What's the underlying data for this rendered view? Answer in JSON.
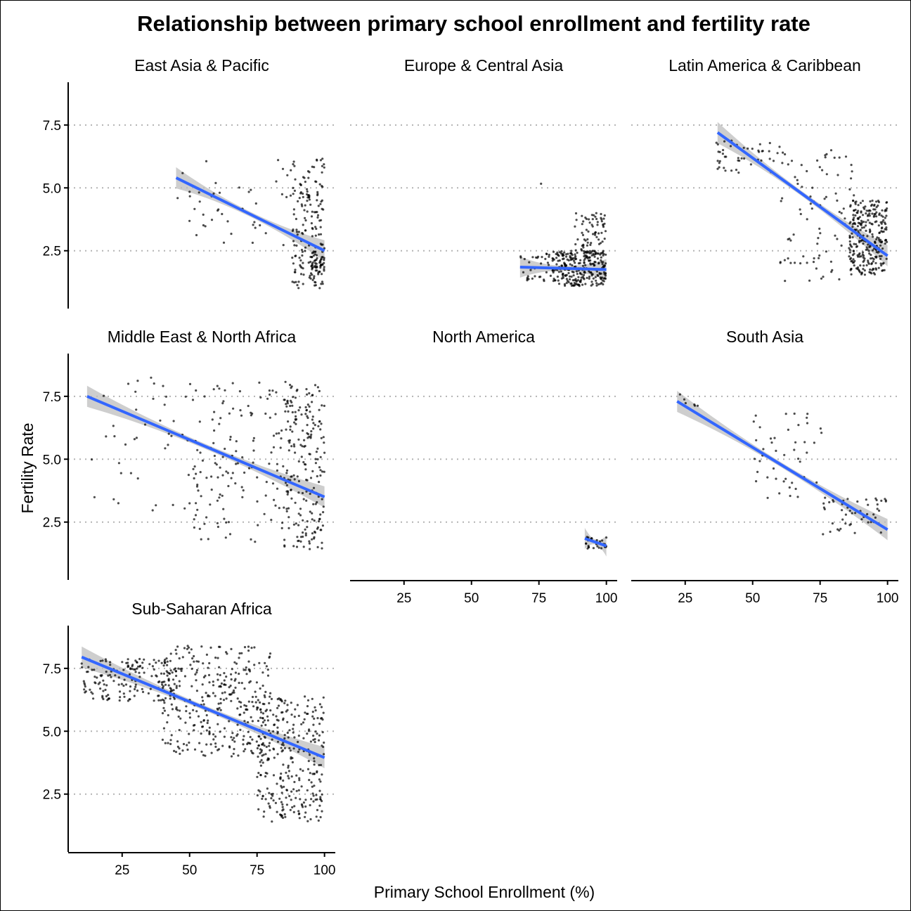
{
  "chart_data": {
    "type": "scatter",
    "title": "Relationship between primary school enrollment and fertility rate",
    "xlabel": "Primary School Enrollment (%)",
    "ylabel": "Fertility Rate",
    "xlim": [
      5,
      104
    ],
    "ylim": [
      0.2,
      9.2
    ],
    "x_ticks": [
      25,
      50,
      75,
      100
    ],
    "y_ticks": [
      2.5,
      5.0,
      7.5
    ],
    "y_tick_labels": [
      "2.5",
      "5.0",
      "7.5"
    ],
    "grid": "horizontal dotted at y ticks",
    "colors": {
      "points": "#000000",
      "trend": "#3366FF",
      "band": "#bdbdbd"
    },
    "facets": [
      {
        "name": "East Asia & Pacific",
        "trend": {
          "x": [
            45,
            100
          ],
          "y": [
            5.4,
            2.5
          ]
        },
        "clusters": [
          {
            "x": [
              88,
              100
            ],
            "y": [
              1.0,
              6.2
            ],
            "n": 170
          },
          {
            "x": [
              45,
              88
            ],
            "y": [
              2.6,
              6.2
            ],
            "n": 45
          },
          {
            "x": [
              95,
              100
            ],
            "y": [
              1.5,
              2.5
            ],
            "n": 45
          }
        ]
      },
      {
        "name": "Europe & Central Asia",
        "trend": {
          "x": [
            68,
            100
          ],
          "y": [
            1.85,
            1.75
          ]
        },
        "clusters": [
          {
            "x": [
              80,
              100
            ],
            "y": [
              1.1,
              2.5
            ],
            "n": 280
          },
          {
            "x": [
              68,
              80
            ],
            "y": [
              1.3,
              2.4
            ],
            "n": 35
          },
          {
            "x": [
              88,
              100
            ],
            "y": [
              2.4,
              4.0
            ],
            "n": 70
          },
          {
            "x": [
              75,
              76
            ],
            "y": [
              5.1,
              5.2
            ],
            "n": 1
          }
        ]
      },
      {
        "name": "Latin America & Caribbean",
        "trend": {
          "x": [
            37,
            100
          ],
          "y": [
            7.2,
            2.3
          ]
        },
        "clusters": [
          {
            "x": [
              36,
              60
            ],
            "y": [
              5.6,
              6.9
            ],
            "n": 45
          },
          {
            "x": [
              60,
              88
            ],
            "y": [
              1.3,
              6.5
            ],
            "n": 90
          },
          {
            "x": [
              86,
              100
            ],
            "y": [
              1.5,
              4.5
            ],
            "n": 280
          }
        ]
      },
      {
        "name": "Middle East & North Africa",
        "trend": {
          "x": [
            12,
            100
          ],
          "y": [
            7.5,
            3.5
          ]
        },
        "clusters": [
          {
            "x": [
              12,
              55
            ],
            "y": [
              2.7,
              8.3
            ],
            "n": 45
          },
          {
            "x": [
              50,
              88
            ],
            "y": [
              1.7,
              8.1
            ],
            "n": 150
          },
          {
            "x": [
              85,
              100
            ],
            "y": [
              1.4,
              8.0
            ],
            "n": 200
          }
        ]
      },
      {
        "name": "North America",
        "trend": {
          "x": [
            92,
            100
          ],
          "y": [
            1.85,
            1.55
          ]
        },
        "clusters": [
          {
            "x": [
              92,
              100
            ],
            "y": [
              1.45,
              1.95
            ],
            "n": 30
          }
        ]
      },
      {
        "name": "South Asia",
        "trend": {
          "x": [
            22,
            100
          ],
          "y": [
            7.3,
            2.2
          ]
        },
        "clusters": [
          {
            "x": [
              22,
              30
            ],
            "y": [
              6.5,
              7.6
            ],
            "n": 6
          },
          {
            "x": [
              50,
              76
            ],
            "y": [
              3.0,
              6.9
            ],
            "n": 45
          },
          {
            "x": [
              75,
              100
            ],
            "y": [
              2.0,
              3.5
            ],
            "n": 50
          }
        ]
      },
      {
        "name": "Sub-Saharan Africa",
        "trend": {
          "x": [
            10,
            100
          ],
          "y": [
            7.95,
            3.95
          ]
        },
        "clusters": [
          {
            "x": [
              10,
              45
            ],
            "y": [
              6.2,
              7.9
            ],
            "n": 170
          },
          {
            "x": [
              40,
              80
            ],
            "y": [
              4.0,
              8.4
            ],
            "n": 330
          },
          {
            "x": [
              75,
              100
            ],
            "y": [
              1.4,
              6.4
            ],
            "n": 300
          }
        ]
      }
    ]
  }
}
